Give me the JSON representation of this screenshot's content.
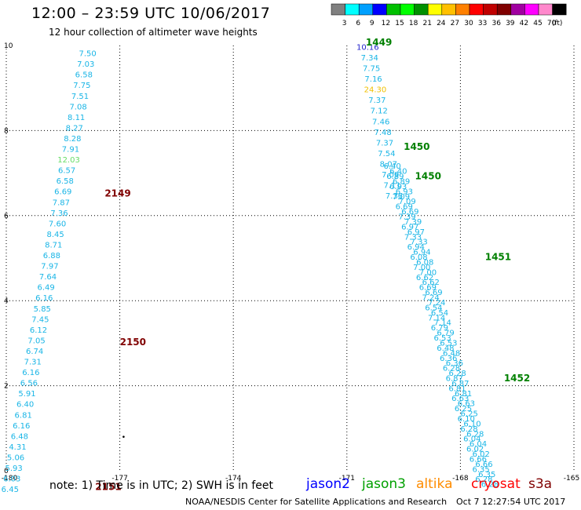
{
  "header": {
    "title": "12:00 – 23:59 UTC 10/06/2017",
    "subtitle": "12 hour collection of altimeter wave heights"
  },
  "colorbar": {
    "labels": [
      "3",
      "6",
      "9",
      "12",
      "15",
      "18",
      "21",
      "24",
      "27",
      "30",
      "33",
      "36",
      "39",
      "42",
      "45",
      "70",
      "(ft)"
    ],
    "colors": [
      "#808080",
      "#00ffff",
      "#00a0ff",
      "#0000ff",
      "#00c000",
      "#00ff00",
      "#009000",
      "#ffff00",
      "#ffc000",
      "#ff8000",
      "#ff0000",
      "#c00000",
      "#800000",
      "#a000a0",
      "#ff00ff",
      "#ff88cc",
      "#000000"
    ]
  },
  "axes": {
    "x_ticks": [
      "-180",
      "-177",
      "-174",
      "-171",
      "-168",
      "-165"
    ],
    "y_ticks": [
      "0",
      "2",
      "4",
      "6",
      "8",
      "10"
    ],
    "x_range": [
      -180,
      -165
    ],
    "y_range": [
      0,
      10
    ]
  },
  "tracks": [
    {
      "name": "left",
      "readings": [
        {
          "v": "7.50",
          "lon": -177.85,
          "lat": 9.75
        },
        {
          "v": "7.03",
          "lon": -177.9,
          "lat": 9.5
        },
        {
          "v": "6.58",
          "lon": -177.95,
          "lat": 9.25
        },
        {
          "v": "7.75",
          "lon": -178.0,
          "lat": 9.0
        },
        {
          "v": "7.51",
          "lon": -178.05,
          "lat": 8.75
        },
        {
          "v": "7.08",
          "lon": -178.1,
          "lat": 8.5
        },
        {
          "v": "8.11",
          "lon": -178.15,
          "lat": 8.25
        },
        {
          "v": "8.27",
          "lon": -178.2,
          "lat": 8.0
        },
        {
          "v": "8.28",
          "lon": -178.25,
          "lat": 7.75
        },
        {
          "v": "7.91",
          "lon": -178.3,
          "lat": 7.5
        },
        {
          "v": "12.03",
          "lon": -178.35,
          "lat": 7.25,
          "c": "#66dd66"
        },
        {
          "v": "6.57",
          "lon": -178.4,
          "lat": 7.0
        },
        {
          "v": "6.58",
          "lon": -178.45,
          "lat": 6.75
        },
        {
          "v": "6.69",
          "lon": -178.5,
          "lat": 6.5
        },
        {
          "v": "7.87",
          "lon": -178.55,
          "lat": 6.25
        },
        {
          "v": "7.36",
          "lon": -178.6,
          "lat": 6.0
        },
        {
          "v": "7.60",
          "lon": -178.65,
          "lat": 5.75
        },
        {
          "v": "8.45",
          "lon": -178.7,
          "lat": 5.5
        },
        {
          "v": "8.71",
          "lon": -178.75,
          "lat": 5.25
        },
        {
          "v": "6.88",
          "lon": -178.8,
          "lat": 5.0
        },
        {
          "v": "7.97",
          "lon": -178.85,
          "lat": 4.75
        },
        {
          "v": "7.64",
          "lon": -178.9,
          "lat": 4.5
        },
        {
          "v": "6.49",
          "lon": -178.95,
          "lat": 4.25
        },
        {
          "v": "6.16",
          "lon": -179.0,
          "lat": 4.0
        },
        {
          "v": "5.85",
          "lon": -179.05,
          "lat": 3.75
        },
        {
          "v": "7.45",
          "lon": -179.1,
          "lat": 3.5
        },
        {
          "v": "6.12",
          "lon": -179.15,
          "lat": 3.25
        },
        {
          "v": "7.05",
          "lon": -179.2,
          "lat": 3.0
        },
        {
          "v": "6.74",
          "lon": -179.25,
          "lat": 2.75
        },
        {
          "v": "7.31",
          "lon": -179.3,
          "lat": 2.5
        },
        {
          "v": "6.16",
          "lon": -179.35,
          "lat": 2.25
        },
        {
          "v": "6.56",
          "lon": -179.4,
          "lat": 2.0
        },
        {
          "v": "5.91",
          "lon": -179.45,
          "lat": 1.75
        },
        {
          "v": "6.40",
          "lon": -179.5,
          "lat": 1.5
        },
        {
          "v": "6.81",
          "lon": -179.55,
          "lat": 1.25
        },
        {
          "v": "6.16",
          "lon": -179.6,
          "lat": 1.0
        },
        {
          "v": "6.48",
          "lon": -179.65,
          "lat": 0.75
        },
        {
          "v": "4.31",
          "lon": -179.7,
          "lat": 0.5
        },
        {
          "v": "5.06",
          "lon": -179.75,
          "lat": 0.25
        },
        {
          "v": "5.93",
          "lon": -179.8,
          "lat": 0.0
        },
        {
          "v": "6.03",
          "lon": -179.85,
          "lat": -0.25
        },
        {
          "v": "6.45",
          "lon": -179.9,
          "lat": -0.5
        }
      ]
    },
    {
      "name": "right",
      "readings": [
        {
          "v": "10.16",
          "lon": -170.45,
          "lat": 9.9,
          "c": "#2222cc"
        },
        {
          "v": "7.34",
          "lon": -170.4,
          "lat": 9.65
        },
        {
          "v": "7.75",
          "lon": -170.35,
          "lat": 9.4
        },
        {
          "v": "7.16",
          "lon": -170.3,
          "lat": 9.15
        },
        {
          "v": "24.30",
          "lon": -170.25,
          "lat": 8.9,
          "c": "#f0c000"
        },
        {
          "v": "7.37",
          "lon": -170.2,
          "lat": 8.65
        },
        {
          "v": "7.12",
          "lon": -170.15,
          "lat": 8.4
        },
        {
          "v": "7.46",
          "lon": -170.1,
          "lat": 8.15
        },
        {
          "v": "7.48",
          "lon": -170.05,
          "lat": 7.9
        },
        {
          "v": "7.37",
          "lon": -170.0,
          "lat": 7.65
        },
        {
          "v": "7.54",
          "lon": -169.95,
          "lat": 7.4
        },
        {
          "v": "8.07",
          "lon": -169.9,
          "lat": 7.15
        },
        {
          "v": "7.09",
          "lon": -169.85,
          "lat": 6.9
        },
        {
          "v": "7.11",
          "lon": -169.8,
          "lat": 6.65
        },
        {
          "v": "7.36",
          "lon": -169.75,
          "lat": 6.4
        }
      ]
    }
  ],
  "dense_track": {
    "start": [
      -169.8,
      7.1
    ],
    "end": [
      -167.3,
      -0.5
    ],
    "sample_values": [
      "6.40",
      "6.89",
      "6.93",
      "7.09",
      "6.69",
      "7.39",
      "6.97",
      "7.33",
      "6.94",
      "6.08",
      "7.00",
      "6.62",
      "6.69",
      "7.24",
      "6.54",
      "7.14",
      "6.79",
      "6.53",
      "6.48",
      "6.36",
      "6.28",
      "6.87",
      "6.81",
      "6.63",
      "6.25",
      "6.10",
      "6.28",
      "6.04",
      "6.02",
      "6.66",
      "6.35",
      "6.28"
    ]
  },
  "time_labels": [
    {
      "t": "2149",
      "lon": -177.4,
      "lat": 6.45,
      "c": "#800000"
    },
    {
      "t": "2150",
      "lon": -177.0,
      "lat": 2.95,
      "c": "#800000"
    },
    {
      "t": "2151",
      "lon": -177.65,
      "lat": -0.45,
      "c": "#800000"
    },
    {
      "t": "1449",
      "lon": -170.5,
      "lat": 10.0,
      "c": "#008000"
    },
    {
      "t": "1450",
      "lon": -169.5,
      "lat": 7.55,
      "c": "#008000"
    },
    {
      "t": "1450",
      "lon": -169.2,
      "lat": 6.85,
      "c": "#008000"
    },
    {
      "t": "1451",
      "lon": -167.35,
      "lat": 4.95,
      "c": "#008000"
    },
    {
      "t": "1452",
      "lon": -166.85,
      "lat": 2.1,
      "c": "#008000"
    }
  ],
  "footer": {
    "note": "note:  1) Time is in UTC;  2) SWH is in feet",
    "satellites": [
      {
        "name": "jason2",
        "color": "#0000ff"
      },
      {
        "name": "jason3",
        "color": "#00a000"
      },
      {
        "name": "altika",
        "color": "#ff8c00"
      },
      {
        "name": "cryosat",
        "color": "#ff0000"
      },
      {
        "name": "s3a",
        "color": "#800000"
      }
    ],
    "credit": "NOAA/NESDIS Center for Satellite Applications and Research",
    "timestamp": "Oct  7 12:27:54 UTC 2017"
  }
}
